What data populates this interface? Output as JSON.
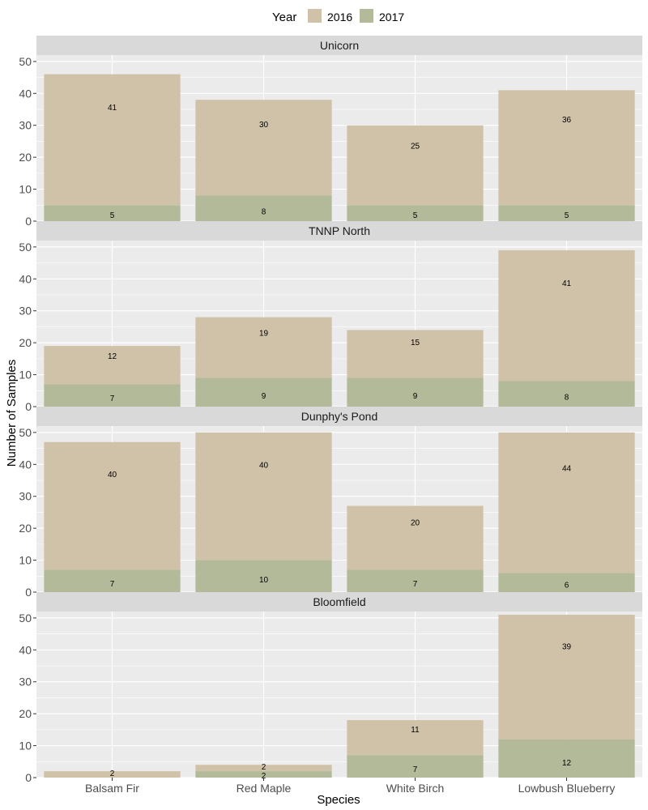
{
  "chart_data": {
    "type": "bar",
    "stacked": true,
    "xlabel": "Species",
    "ylabel": "Number of Samples",
    "categories": [
      "Balsam Fir",
      "Red Maple",
      "White Birch",
      "Lowbush Blueberry"
    ],
    "ylim": [
      0,
      52
    ],
    "yticks": [
      0,
      10,
      20,
      30,
      40,
      50
    ],
    "grid": true,
    "legend": {
      "title": "Year",
      "position": "top",
      "entries": [
        {
          "label": "2016",
          "color": "#d0c2a8"
        },
        {
          "label": "2017",
          "color": "#b3ba9a"
        }
      ]
    },
    "colors": {
      "panel_bg": "#ebebeb",
      "strip_bg": "#d9d9d9",
      "grid": "#ffffff",
      "text": "#1a1a1a",
      "tick_text": "#4d4d4d"
    },
    "panels": [
      {
        "name": "Unicorn",
        "series": [
          {
            "name": "2017",
            "values": [
              5,
              8,
              5,
              5
            ]
          },
          {
            "name": "2016",
            "values": [
              41,
              30,
              25,
              36
            ]
          }
        ]
      },
      {
        "name": "TNNP North",
        "series": [
          {
            "name": "2017",
            "values": [
              7,
              9,
              9,
              8
            ]
          },
          {
            "name": "2016",
            "values": [
              12,
              19,
              15,
              41
            ]
          }
        ]
      },
      {
        "name": "Dunphy's Pond",
        "series": [
          {
            "name": "2017",
            "values": [
              7,
              10,
              7,
              6
            ]
          },
          {
            "name": "2016",
            "values": [
              40,
              40,
              20,
              44
            ]
          }
        ]
      },
      {
        "name": "Bloomfield",
        "series": [
          {
            "name": "2017",
            "values": [
              0,
              2,
              7,
              12
            ]
          },
          {
            "name": "2016",
            "values": [
              2,
              2,
              11,
              39
            ]
          }
        ]
      }
    ]
  }
}
